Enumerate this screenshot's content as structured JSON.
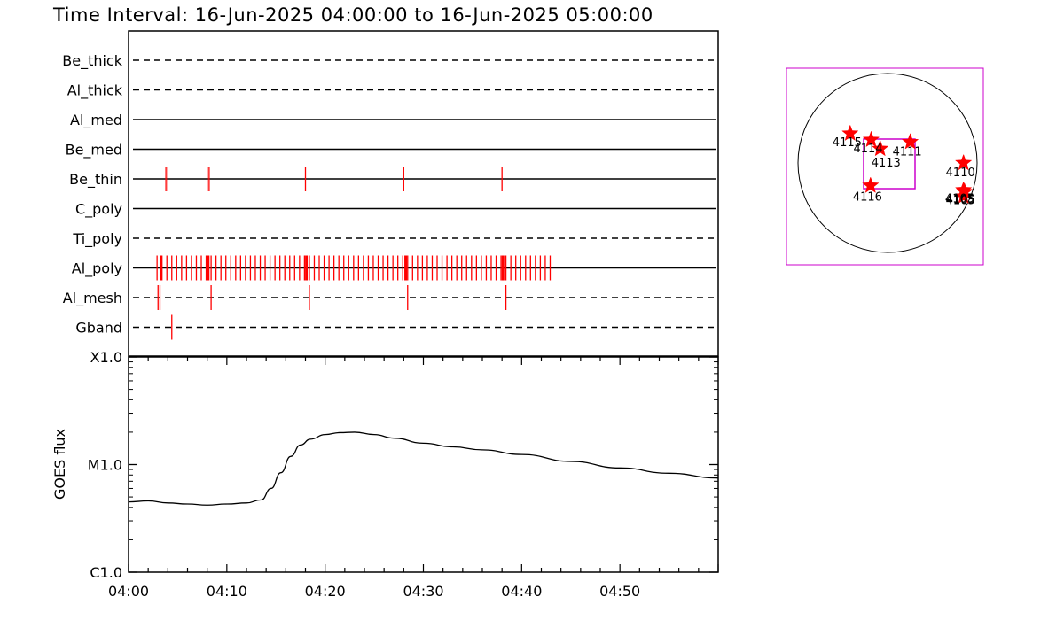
{
  "title": "Time Interval: 16-Jun-2025 04:00:00 to 16-Jun-2025 05:00:00",
  "chart_data": [
    {
      "type": "timeline",
      "x_range": [
        "04:00",
        "05:00"
      ],
      "x_tick_labels": [
        "04:00",
        "04:10",
        "04:20",
        "04:30",
        "04:40",
        "04:50"
      ],
      "x_tick_minutes": [
        0,
        10,
        20,
        30,
        40,
        50
      ],
      "rows": [
        {
          "label": "Be_thick",
          "style": "dashed",
          "events": []
        },
        {
          "label": "Al_thick",
          "style": "dashed",
          "events": []
        },
        {
          "label": "Al_med",
          "style": "solid",
          "events": []
        },
        {
          "label": "Be_med",
          "style": "solid",
          "events": []
        },
        {
          "label": "Be_thin",
          "style": "solid",
          "events": [
            3.8,
            4.0,
            8.0,
            8.2,
            18.0,
            28.0,
            38.0
          ]
        },
        {
          "label": "C_poly",
          "style": "solid",
          "events": []
        },
        {
          "label": "Ti_poly",
          "style": "dashed",
          "events": []
        },
        {
          "label": "Al_poly",
          "style": "solid",
          "events": {
            "start": 2.9,
            "end": 43.3,
            "step": 0.5,
            "bold": [
              3.3,
              8.1,
              18.1,
              28.2,
              38.1
            ]
          }
        },
        {
          "label": "Al_mesh",
          "style": "dashed",
          "events": [
            3.0,
            3.2,
            8.4,
            18.4,
            28.4,
            38.4
          ]
        },
        {
          "label": "Gband",
          "style": "dashed",
          "events": [
            4.4
          ]
        }
      ],
      "event_color": "#ff0000"
    },
    {
      "type": "line",
      "ylabel": "GOES flux",
      "y_scale": "log",
      "y_tick_labels": [
        "C1.0",
        "M1.0",
        "X1.0"
      ],
      "ylim_tick_labels": [
        "C1.0",
        "X1.0"
      ],
      "x_tick_labels": [
        "04:00",
        "04:10",
        "04:20",
        "04:30",
        "04:40",
        "04:50"
      ],
      "x_minutes": [
        0,
        2,
        4,
        6,
        8,
        10,
        12,
        13.5,
        14.5,
        15.5,
        16.5,
        17.5,
        18.5,
        20,
        21.5,
        23,
        25,
        27,
        30,
        33,
        36,
        40,
        45,
        50,
        55,
        60
      ],
      "y_flux_wm2": [
        4.5e-06,
        4.6e-06,
        4.4e-06,
        4.3e-06,
        4.2e-06,
        4.3e-06,
        4.4e-06,
        4.7e-06,
        6e-06,
        8.4e-06,
        1.19e-05,
        1.52e-05,
        1.72e-05,
        1.9e-05,
        1.98e-05,
        2e-05,
        1.9e-05,
        1.76e-05,
        1.58e-05,
        1.46e-05,
        1.37e-05,
        1.24e-05,
        1.07e-05,
        9.3e-06,
        8.3e-06,
        7.5e-06
      ],
      "line_color": "#000000"
    },
    {
      "type": "scatter",
      "description_frame": "solar disk map",
      "x_arcsec": [
        -660,
        -290,
        -130,
        400,
        1340,
        1340,
        1360,
        1340,
        -300
      ],
      "y_arcsec": [
        520,
        410,
        250,
        370,
        0,
        -480,
        -510,
        -590,
        -400
      ],
      "labels": [
        "4115",
        "4114",
        "4113",
        "4111",
        "4110",
        "4105",
        "4105",
        "4105",
        "4116"
      ],
      "marker": "star",
      "marker_color": "#ff0000",
      "disk_radius_arcsec": 1580,
      "box_color": "#cc00cc"
    }
  ]
}
